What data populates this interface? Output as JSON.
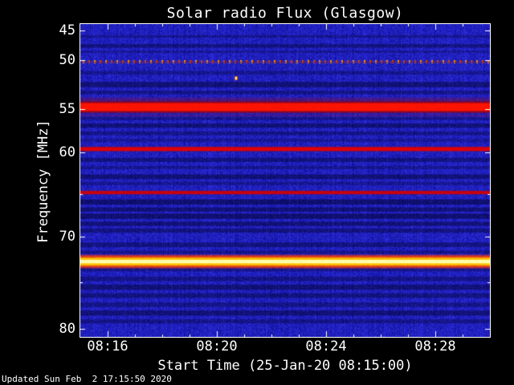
{
  "footer": {
    "updated": "Updated Sun Feb  2 17:15:50 2020"
  },
  "chart_data": {
    "type": "heatmap",
    "title": "Solar radio Flux (Glasgow)",
    "xlabel": "Start Time (25-Jan-20 08:15:00)",
    "ylabel": "Frequency [MHz]",
    "x_minutes_range": [
      15,
      30
    ],
    "x_ticks": [
      {
        "minute": 16,
        "label": "08:16"
      },
      {
        "minute": 20,
        "label": "08:20"
      },
      {
        "minute": 24,
        "label": "08:24"
      },
      {
        "minute": 28,
        "label": "08:28"
      }
    ],
    "y_ticks": [
      {
        "value": 45,
        "label": "45"
      },
      {
        "value": 50,
        "label": "50"
      },
      {
        "value": 55,
        "label": "55"
      },
      {
        "value": 60,
        "label": "60"
      },
      {
        "value": 70,
        "label": "70"
      },
      {
        "value": 80,
        "label": "80"
      }
    ],
    "y_minor_ticks": [
      65,
      75
    ],
    "y_axis_anchors": [
      {
        "frac": 0.0,
        "freq": 43.9
      },
      {
        "frac": 0.0205,
        "freq": 45
      },
      {
        "frac": 0.115,
        "freq": 50
      },
      {
        "frac": 0.272,
        "freq": 55
      },
      {
        "frac": 0.41,
        "freq": 60
      },
      {
        "frac": 0.679,
        "freq": 70
      },
      {
        "frac": 0.974,
        "freq": 80
      },
      {
        "frac": 1.0,
        "freq": 80.9
      }
    ],
    "colors": {
      "page_bg": "#000000",
      "text": "#ffffff",
      "axis": "#ffffff",
      "plot_base": "#0e0ea0"
    },
    "emission_bands": [
      {
        "freq": 53.95,
        "width": 0.22,
        "intensity": 0.4,
        "color": "#7a1040"
      },
      {
        "freq": 55.75,
        "width": 0.2,
        "intensity": 0.35,
        "color": "#7a1040"
      },
      {
        "freq": 54.8,
        "width": 1.05,
        "intensity": 0.8,
        "color": "#a50000"
      },
      {
        "freq": 54.8,
        "width": 0.68,
        "intensity": 1.0,
        "color": "#ff1400"
      },
      {
        "freq": 59.62,
        "width": 0.5,
        "intensity": 0.5,
        "color": "#8a1030"
      },
      {
        "freq": 59.62,
        "width": 0.34,
        "intensity": 0.95,
        "color": "#e80000"
      },
      {
        "freq": 64.78,
        "width": 0.42,
        "intensity": 0.4,
        "color": "#801030"
      },
      {
        "freq": 64.78,
        "width": 0.27,
        "intensity": 0.9,
        "color": "#d80000"
      },
      {
        "freq": 72.72,
        "width": 1.15,
        "intensity": 0.85,
        "color": "#ff3c00"
      },
      {
        "freq": 72.72,
        "width": 0.7,
        "intensity": 1.0,
        "color": "#ffc800"
      },
      {
        "freq": 72.72,
        "width": 0.3,
        "intensity": 1.0,
        "color": "#ffffb4"
      },
      {
        "freq": 50.2,
        "width": 0.16,
        "intensity": 0.3,
        "color": "#aa3322"
      }
    ],
    "dark_bands": [
      {
        "freq": 46.0,
        "width": 0.35,
        "strength": 0.3
      },
      {
        "freq": 47.6,
        "width": 0.5,
        "strength": 0.4
      },
      {
        "freq": 48.6,
        "width": 0.3,
        "strength": 0.25
      },
      {
        "freq": 51.3,
        "width": 0.3,
        "strength": 0.3
      },
      {
        "freq": 52.5,
        "width": 0.45,
        "strength": 0.45
      },
      {
        "freq": 53.3,
        "width": 0.3,
        "strength": 0.35
      },
      {
        "freq": 56.1,
        "width": 0.3,
        "strength": 0.3
      },
      {
        "freq": 56.9,
        "width": 0.4,
        "strength": 0.45
      },
      {
        "freq": 57.8,
        "width": 0.35,
        "strength": 0.35
      },
      {
        "freq": 58.6,
        "width": 0.3,
        "strength": 0.25
      },
      {
        "freq": 60.9,
        "width": 0.4,
        "strength": 0.4
      },
      {
        "freq": 61.8,
        "width": 0.3,
        "strength": 0.3
      },
      {
        "freq": 62.9,
        "width": 0.45,
        "strength": 0.45
      },
      {
        "freq": 63.7,
        "width": 0.3,
        "strength": 0.3
      },
      {
        "freq": 65.9,
        "width": 0.5,
        "strength": 0.5
      },
      {
        "freq": 66.8,
        "width": 0.4,
        "strength": 0.45
      },
      {
        "freq": 67.6,
        "width": 0.5,
        "strength": 0.5
      },
      {
        "freq": 68.5,
        "width": 0.4,
        "strength": 0.45
      },
      {
        "freq": 69.3,
        "width": 0.4,
        "strength": 0.4
      },
      {
        "freq": 70.9,
        "width": 0.4,
        "strength": 0.4
      },
      {
        "freq": 71.7,
        "width": 0.3,
        "strength": 0.3
      },
      {
        "freq": 73.6,
        "width": 0.3,
        "strength": 0.3
      },
      {
        "freq": 74.6,
        "width": 0.4,
        "strength": 0.35
      },
      {
        "freq": 75.5,
        "width": 0.45,
        "strength": 0.45
      },
      {
        "freq": 76.4,
        "width": 0.4,
        "strength": 0.4
      },
      {
        "freq": 77.4,
        "width": 0.4,
        "strength": 0.35
      },
      {
        "freq": 78.3,
        "width": 0.45,
        "strength": 0.45
      },
      {
        "freq": 79.2,
        "width": 0.35,
        "strength": 0.35
      }
    ],
    "dotted_line": {
      "freq": 50.2,
      "dot_spacing_px": 7,
      "colors": [
        "#ff9900",
        "#d44400"
      ]
    },
    "transient_point": {
      "minute": 20.72,
      "freq": 51.8,
      "color": "#ffff99",
      "halo_color": "#cc6600"
    }
  }
}
